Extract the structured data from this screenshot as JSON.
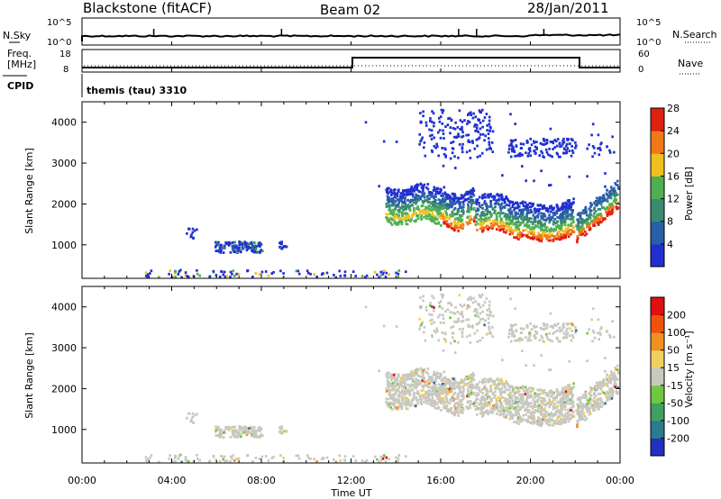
{
  "header": {
    "station": "Blackstone (fitACF)",
    "beam": "Beam 02",
    "date": "28/Jan/2011"
  },
  "noise_panel": {
    "left_label": "N.Sky",
    "right_label": "N.Search",
    "left_ticks": [
      "10^5",
      "10^0"
    ],
    "right_ticks": [
      "10^5",
      "10^0"
    ]
  },
  "freq_panel": {
    "left_label_line1": "Freq.",
    "left_label_line2": "[MHz]",
    "right_label": "Nave",
    "left_ticks": [
      "18",
      "8"
    ],
    "right_ticks": [
      "60",
      "0"
    ]
  },
  "cpid": {
    "label": "CPID",
    "value": "themis (tau) 3310"
  },
  "chart_data": [
    {
      "type": "heatmap",
      "name": "Power",
      "ylabel": "Slant Range [km]",
      "xlabel": "Time UT",
      "ylim": [
        180,
        4500
      ],
      "yticks": [
        "1000",
        "2000",
        "3000",
        "4000"
      ],
      "colorbar_label": "Power [dB]",
      "colorbar_ticks": [
        "4",
        "8",
        "12",
        "16",
        "20",
        "24",
        "28"
      ],
      "colors": [
        "#2030d0",
        "#2a5fa8",
        "#3a8a70",
        "#50b050",
        "#f0c020",
        "#f07818",
        "#e02010"
      ]
    },
    {
      "type": "heatmap",
      "name": "Velocity",
      "ylabel": "Slant Range [km]",
      "xlabel": "Time UT",
      "ylim": [
        180,
        4500
      ],
      "yticks": [
        "1000",
        "2000",
        "3000",
        "4000"
      ],
      "colorbar_label": "Velocity [m s⁻¹]",
      "colorbar_ticks": [
        "200",
        "100",
        "50",
        "15",
        "-15",
        "-50",
        "-100",
        "-200"
      ],
      "colors": [
        "#2030c0",
        "#2a7a90",
        "#40a060",
        "#70c840",
        "#c8c8c0",
        "#f0d060",
        "#f09020",
        "#f05010",
        "#e01010"
      ]
    }
  ],
  "time_axis": {
    "label": "Time UT",
    "ticks": [
      "00:00",
      "04:00",
      "08:00",
      "12:00",
      "16:00",
      "20:00",
      "00:00"
    ]
  }
}
